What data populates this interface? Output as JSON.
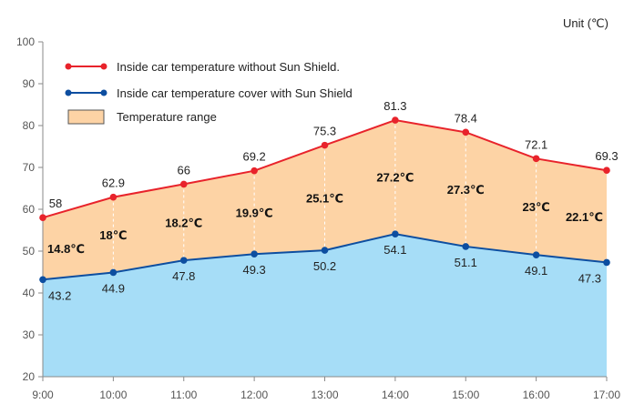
{
  "chart_data": {
    "type": "line",
    "unit_label": "Unit (℃)",
    "categories": [
      "9:00",
      "10:00",
      "11:00",
      "12:00",
      "13:00",
      "14:00",
      "15:00",
      "16:00",
      "17:00"
    ],
    "ylim": [
      20,
      100
    ],
    "yticks": [
      20,
      30,
      40,
      50,
      60,
      70,
      80,
      90,
      100
    ],
    "grid": false,
    "legend_position": "top-left",
    "series": [
      {
        "name": "Inside car temperature without Sun Shield.",
        "values": [
          58,
          62.9,
          66,
          69.2,
          75.3,
          81.3,
          78.4,
          72.1,
          69.3
        ],
        "labels": [
          "58",
          "62.9",
          "66",
          "69.2",
          "75.3",
          "81.3",
          "78.4",
          "72.1",
          "69.3"
        ],
        "color": "#e8232b"
      },
      {
        "name": "Inside car temperature cover with Sun Shield",
        "values": [
          43.2,
          44.9,
          47.8,
          49.3,
          50.2,
          54.1,
          51.1,
          49.1,
          47.3
        ],
        "labels": [
          "43.2",
          "44.9",
          "47.8",
          "49.3",
          "50.2",
          "54.1",
          "51.1",
          "49.1",
          "47.3"
        ],
        "color": "#0d4ea0"
      }
    ],
    "range_legend": "Temperature range",
    "range_fill": "#fdd3a5",
    "below_fill": "#a6ddf7",
    "range_labels": [
      "14.8℃",
      "18℃",
      "18.2℃",
      "19.9℃",
      "25.1℃",
      "27.2℃",
      "27.3℃",
      "23℃",
      "22.1℃"
    ]
  }
}
